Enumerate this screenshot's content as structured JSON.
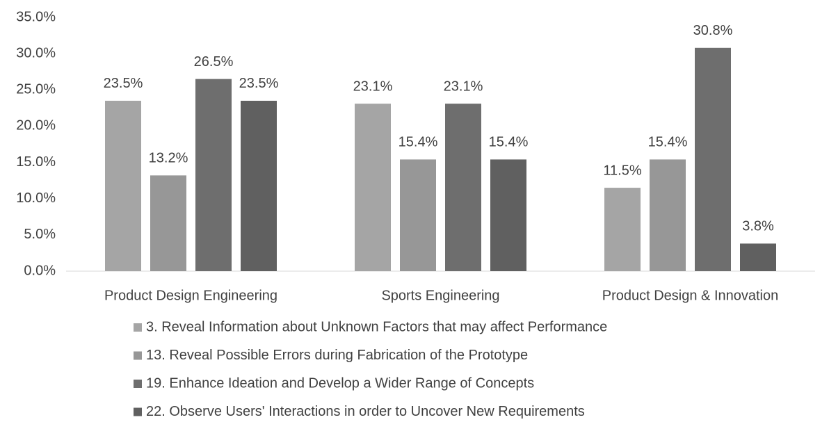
{
  "chart_data": {
    "type": "bar",
    "categories": [
      "Product Design Engineering",
      "Sports Engineering",
      "Product Design & Innovation"
    ],
    "series": [
      {
        "name": "3. Reveal Information about Unknown Factors that may affect Performance",
        "color": "#a5a5a5",
        "values": [
          23.5,
          23.1,
          11.5
        ],
        "value_labels": [
          "23.5%",
          "23.1%",
          "11.5%"
        ]
      },
      {
        "name": "13. Reveal Possible Errors during Fabrication of the Prototype",
        "color": "#979797",
        "values": [
          13.2,
          15.4,
          15.4
        ],
        "value_labels": [
          "13.2%",
          "15.4%",
          "15.4%"
        ]
      },
      {
        "name": "19. Enhance Ideation and Develop a Wider Range of Concepts",
        "color": "#6e6e6e",
        "values": [
          26.5,
          23.1,
          30.8
        ],
        "value_labels": [
          "26.5%",
          "23.1%",
          "30.8%"
        ]
      },
      {
        "name": "22. Observe Users' Interactions in order to Uncover New Requirements",
        "color": "#606060",
        "values": [
          23.5,
          15.4,
          3.8
        ],
        "value_labels": [
          "23.5%",
          "15.4%",
          "3.8%"
        ]
      }
    ],
    "ylim": [
      0,
      35
    ],
    "yticks": [
      {
        "value": 0,
        "label": "0.0%"
      },
      {
        "value": 5,
        "label": "5.0%"
      },
      {
        "value": 10,
        "label": "10.0%"
      },
      {
        "value": 15,
        "label": "15.0%"
      },
      {
        "value": 20,
        "label": "20.0%"
      },
      {
        "value": 25,
        "label": "25.0%"
      },
      {
        "value": 30,
        "label": "30.0%"
      },
      {
        "value": 35,
        "label": "35.0%"
      }
    ],
    "grid": false,
    "legend": "bottom"
  }
}
